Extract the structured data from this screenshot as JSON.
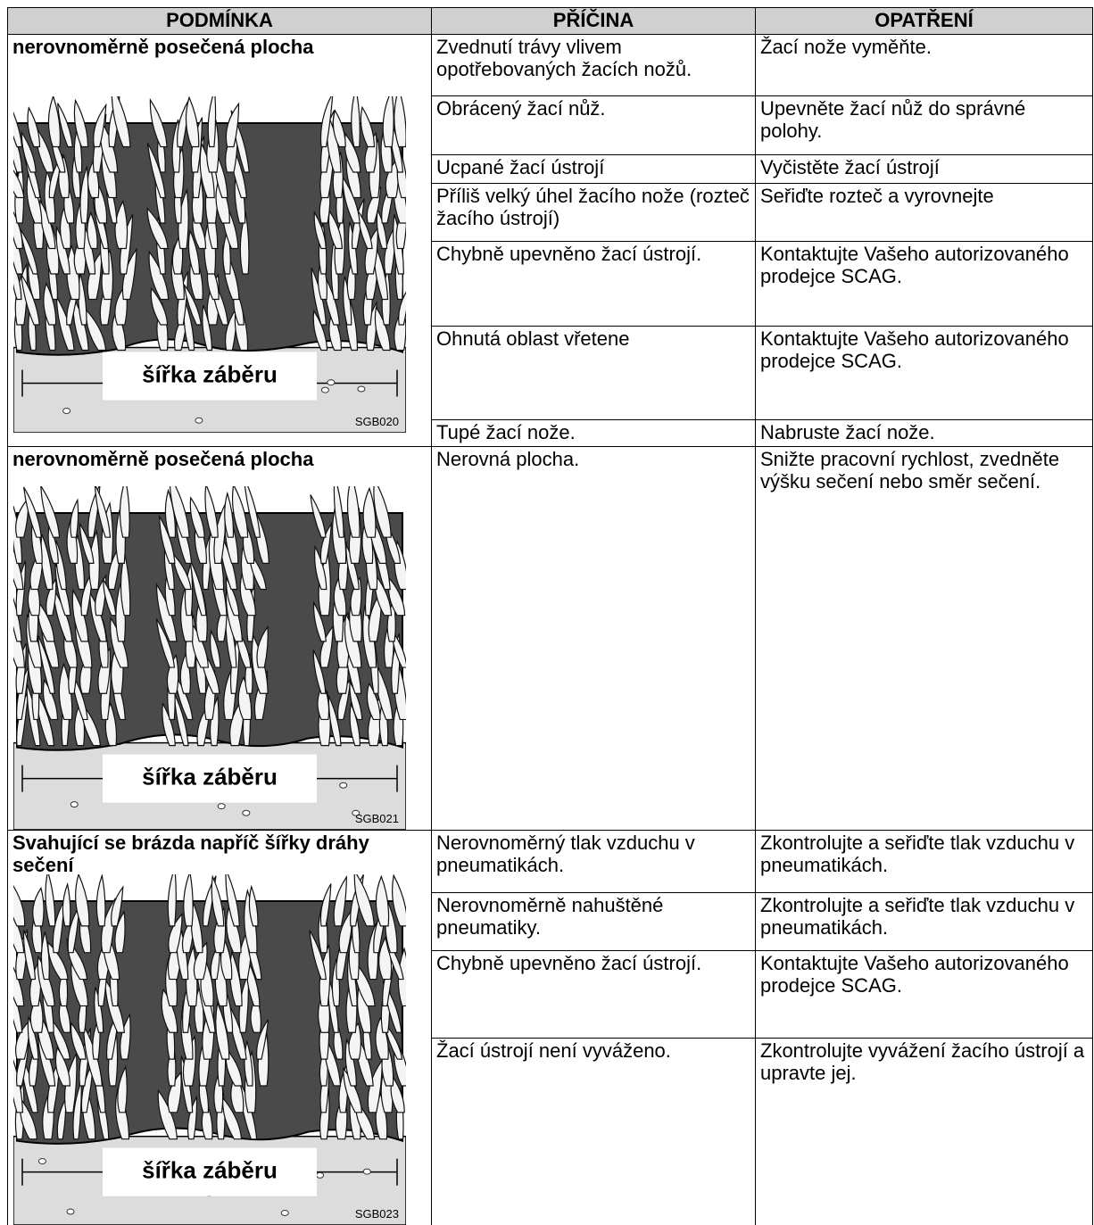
{
  "header": {
    "columns": [
      "PODMÍNKA",
      "PŘÍČINA",
      "OPATŘENÍ"
    ]
  },
  "groups": [
    {
      "condition": "nerovnoměrně posečená plocha",
      "image": {
        "caption": "šířka záběru",
        "code": "SGB020"
      },
      "rows": [
        {
          "cause": "Zvednutí trávy vlivem opotřebovaných žacích nožů.",
          "remedy": "Žací nože vyměňte."
        },
        {
          "cause": "Obrácený žací nůž.",
          "remedy": "Upevněte žací nůž do správné polohy."
        },
        {
          "cause": "Ucpané žací ústrojí",
          "remedy": "Vyčistěte žací ústrojí"
        },
        {
          "cause": "Příliš velký úhel žacího nože (rozteč žacího ústrojí)",
          "remedy": "Seřiďte rozteč a vyrovnejte"
        },
        {
          "cause": "Chybně upevněno žací ústrojí.",
          "remedy": "Kontaktujte Vašeho autorizovaného prodejce SCAG."
        },
        {
          "cause": "Ohnutá oblast vřetene",
          "remedy": "Kontaktujte Vašeho autorizovaného prodejce SCAG."
        },
        {
          "cause": "Tupé žací nože.",
          "remedy": "Nabruste žací nože."
        }
      ]
    },
    {
      "condition": "nerovnoměrně posečená plocha",
      "image": {
        "caption": "šířka záběru",
        "code": "SGB021"
      },
      "rows": [
        {
          "cause": "Nerovná plocha.",
          "remedy": "Snižte pracovní rychlost, zvedněte výšku sečení nebo směr sečení."
        }
      ]
    },
    {
      "condition": "Svahující se brázda napříč šířky dráhy sečení",
      "image": {
        "caption": "šířka záběru",
        "code": "SGB023"
      },
      "rows": [
        {
          "cause": "Nerovnoměrný tlak vzduchu v pneumatikách.",
          "remedy": "Zkontrolujte a seřiďte tlak vzduchu v pneumatikách."
        },
        {
          "cause": "Nerovnoměrně nahuštěné pneumatiky.",
          "remedy": "Zkontrolujte a seřiďte tlak vzduchu v pneumatikách."
        },
        {
          "cause": "Chybně upevněno žací ústrojí.",
          "remedy": "Kontaktujte Vašeho autorizovaného prodejce SCAG."
        },
        {
          "cause": "Žací ústrojí není vyváženo.",
          "remedy": "Zkontrolujte vyvážení žacího ústrojí a upravte jej."
        }
      ]
    }
  ]
}
